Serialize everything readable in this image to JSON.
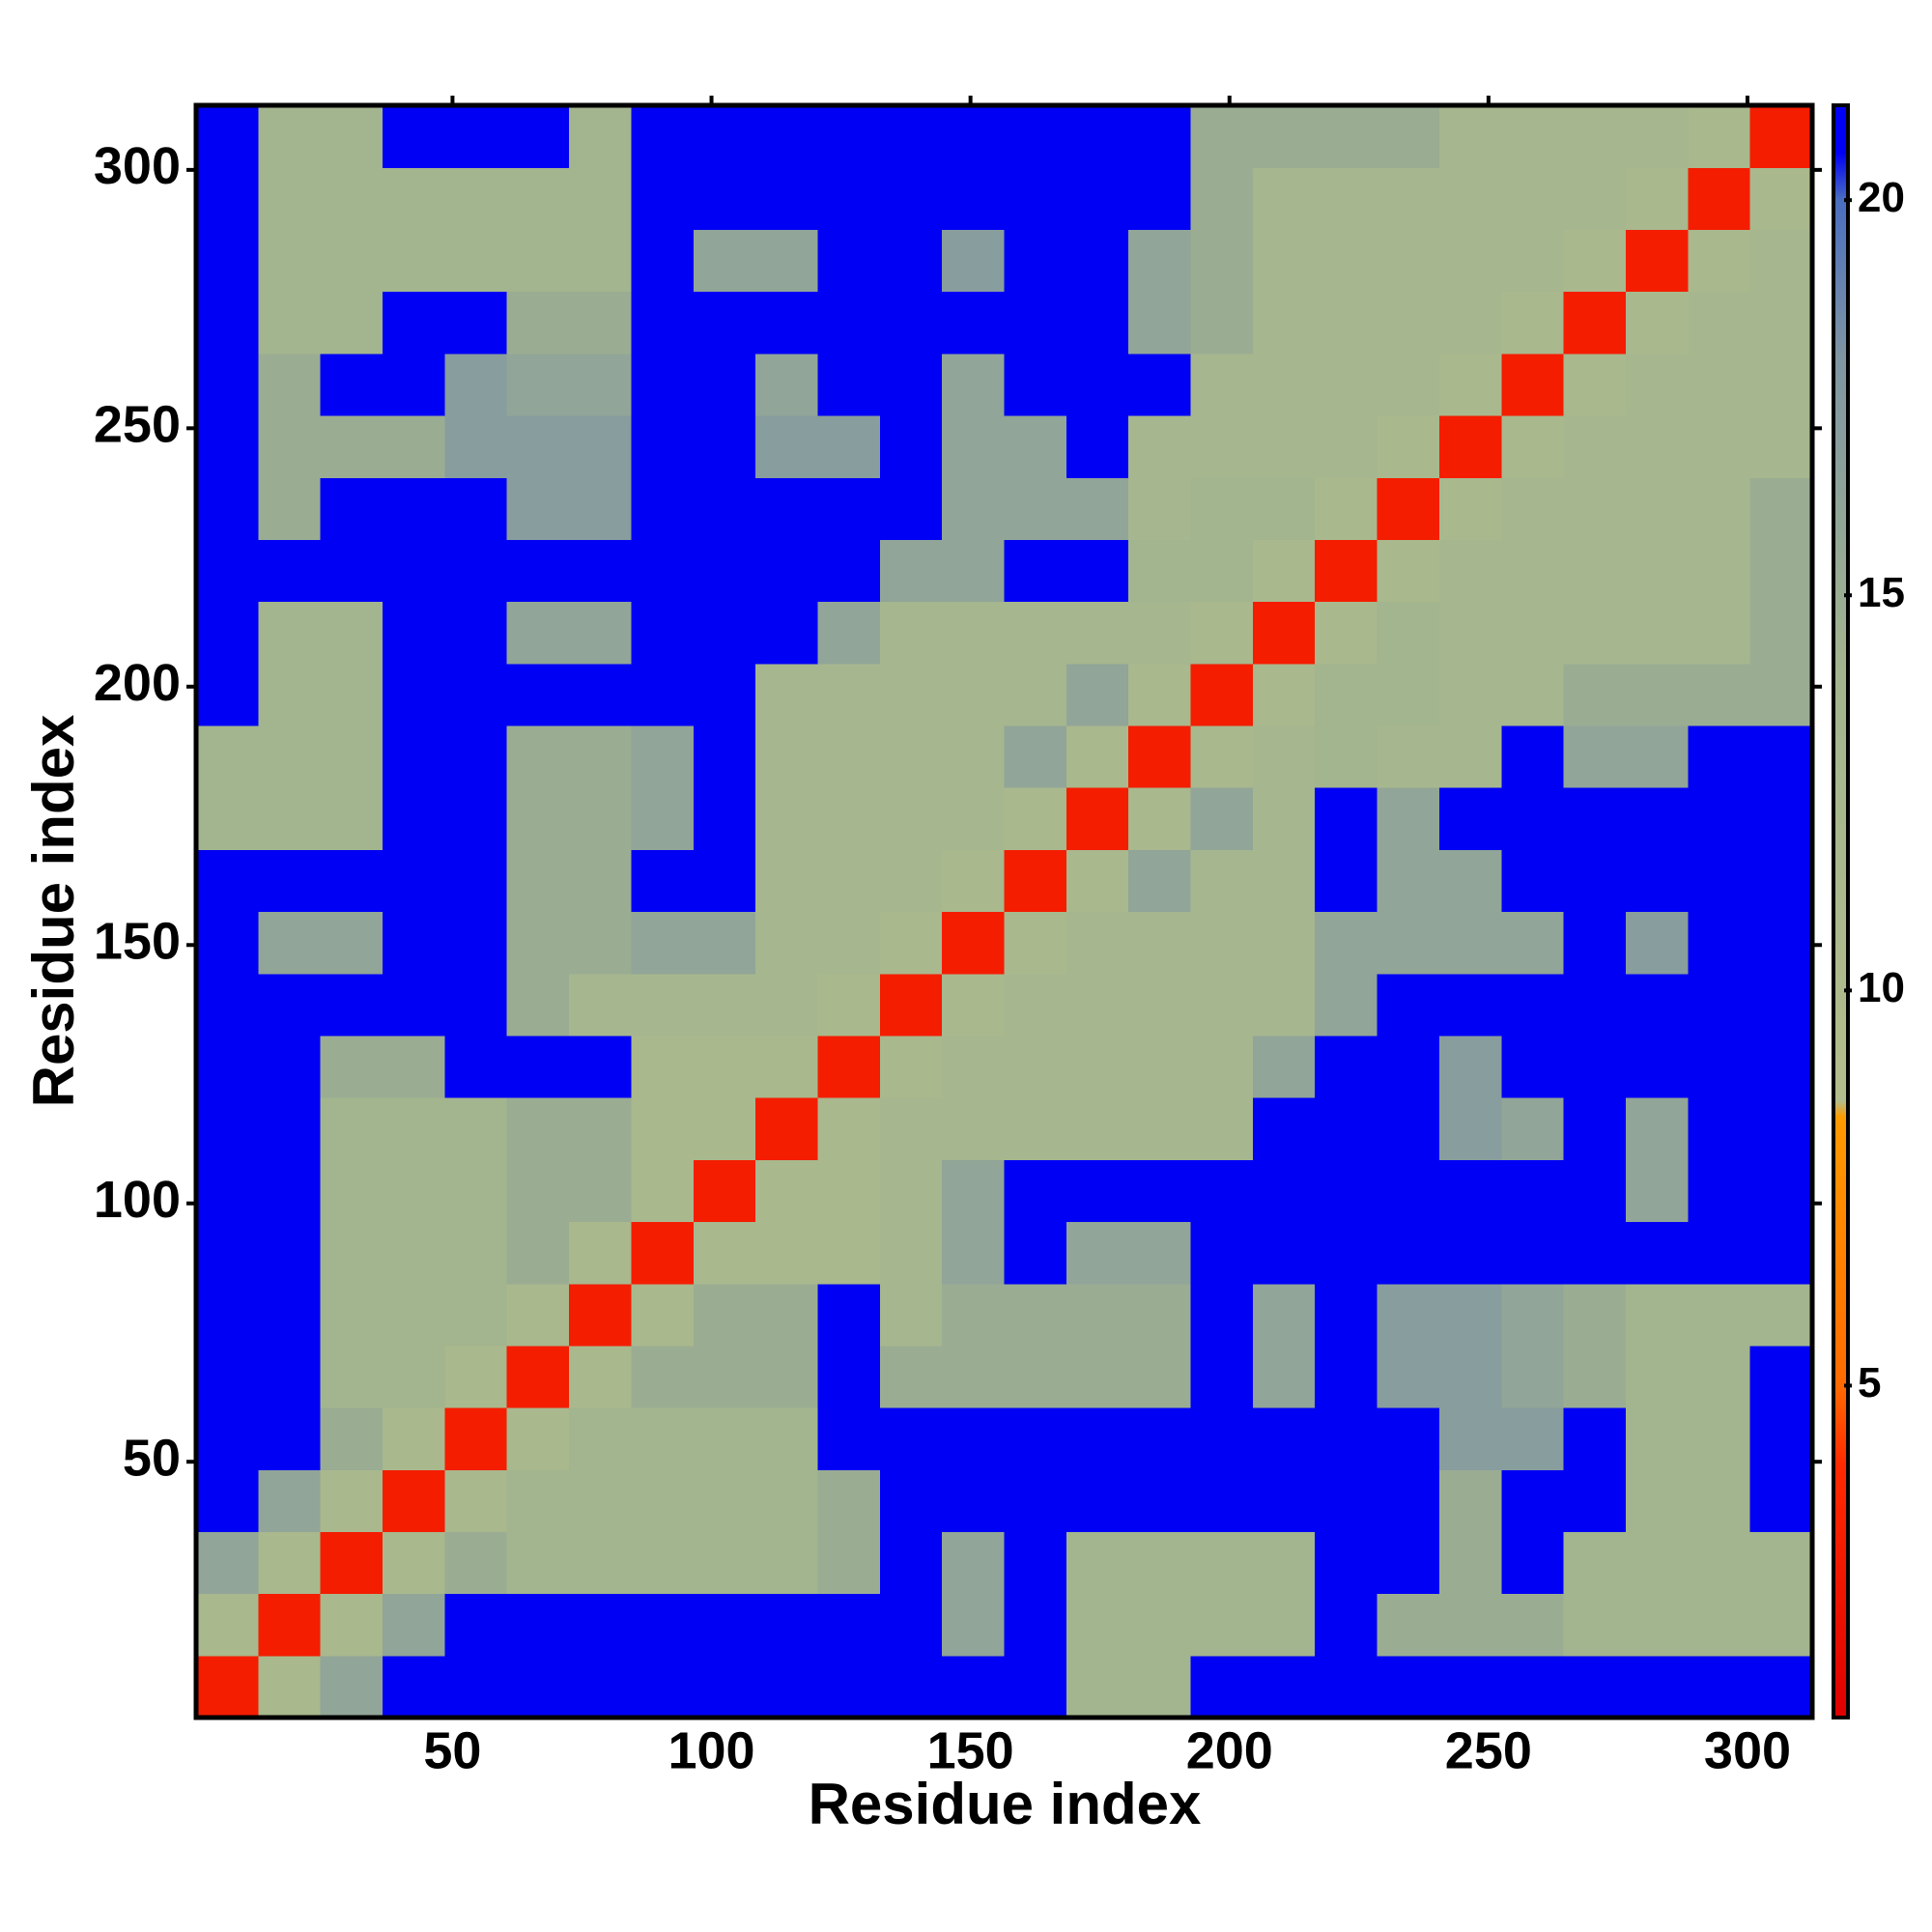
{
  "chart_data": {
    "type": "heatmap",
    "xlabel": "Residue index",
    "ylabel": "Residue index",
    "xlim": [
      0.5,
      312.5
    ],
    "ylim": [
      0.5,
      312.5
    ],
    "xticks": [
      50,
      100,
      150,
      200,
      250,
      300
    ],
    "yticks": [
      50,
      100,
      150,
      200,
      250,
      300
    ],
    "x_edges": [
      0.5,
      12.5,
      24.5,
      36.5,
      48.5,
      60.5,
      72.5,
      84.5,
      96.5,
      108.5,
      120.5,
      132.5,
      144.5,
      156.5,
      168.5,
      180.5,
      192.5,
      204.5,
      216.5,
      228.5,
      240.5,
      252.5,
      264.5,
      276.5,
      288.5,
      300.5,
      312.5
    ],
    "y_edges": [
      0.5,
      12.5,
      24.5,
      36.5,
      48.5,
      60.5,
      72.5,
      84.5,
      96.5,
      108.5,
      120.5,
      132.5,
      144.5,
      156.5,
      168.5,
      180.5,
      192.5,
      204.5,
      216.5,
      228.5,
      240.5,
      252.5,
      264.5,
      276.5,
      288.5,
      300.5,
      312.5
    ],
    "clim": [
      0.8,
      21.2
    ],
    "cticks": [
      5,
      10,
      15,
      20
    ],
    "colorscale": [
      {
        "value": 0.8,
        "color": "#dd0000"
      },
      {
        "value": 4,
        "color": "#ff2a00"
      },
      {
        "value": 5,
        "color": "#ff6a00"
      },
      {
        "value": 8.4,
        "color": "#ff9a00"
      },
      {
        "value": 8.6,
        "color": "#b3bd8c"
      },
      {
        "value": 14,
        "color": "#a3b58e"
      },
      {
        "value": 18,
        "color": "#7f95a2"
      },
      {
        "value": 20,
        "color": "#4a6ec0"
      },
      {
        "value": 20.6,
        "color": "#0000f5"
      },
      {
        "value": 21.2,
        "color": "#0000f5"
      }
    ],
    "values": [
      [
        3,
        12,
        16,
        21,
        21,
        21,
        21,
        21,
        21,
        21,
        21,
        21,
        21,
        21,
        14,
        14,
        21,
        21,
        21,
        21,
        21,
        21,
        21,
        21,
        21,
        21
      ],
      [
        12,
        3,
        12,
        16,
        21,
        21,
        21,
        21,
        21,
        21,
        21,
        21,
        16,
        21,
        14,
        14,
        14,
        14,
        21,
        15,
        15,
        15,
        14,
        14,
        14,
        14
      ],
      [
        16,
        12,
        3,
        12,
        15,
        14,
        14,
        14,
        14,
        14,
        15,
        21,
        16,
        21,
        14,
        14,
        14,
        14,
        21,
        21,
        15,
        21,
        14,
        14,
        14,
        14
      ],
      [
        21,
        16,
        12,
        3,
        12,
        14,
        14,
        14,
        14,
        14,
        15,
        21,
        21,
        21,
        21,
        21,
        21,
        21,
        21,
        21,
        15,
        21,
        21,
        14,
        14,
        21
      ],
      [
        21,
        21,
        15,
        12,
        3,
        12,
        14,
        14,
        14,
        14,
        21,
        21,
        21,
        21,
        21,
        21,
        21,
        21,
        21,
        21,
        17,
        17,
        21,
        14,
        14,
        21
      ],
      [
        21,
        21,
        14,
        14,
        12,
        3,
        12,
        15,
        15,
        15,
        21,
        15,
        15,
        15,
        15,
        15,
        21,
        16,
        21,
        17,
        17,
        16,
        15,
        14,
        14,
        21
      ],
      [
        21,
        21,
        14,
        14,
        14,
        12,
        3,
        12,
        15,
        15,
        21,
        13,
        15,
        15,
        15,
        15,
        21,
        16,
        21,
        17,
        17,
        16,
        15,
        14,
        14,
        14
      ],
      [
        21,
        21,
        14,
        14,
        14,
        15,
        12,
        3,
        12,
        12,
        12,
        13,
        16,
        21,
        16,
        16,
        21,
        21,
        21,
        21,
        21,
        21,
        21,
        21,
        21,
        21
      ],
      [
        21,
        21,
        14,
        14,
        14,
        15,
        15,
        12,
        3,
        12,
        12,
        13,
        16,
        21,
        21,
        21,
        21,
        21,
        21,
        21,
        21,
        21,
        21,
        16,
        21,
        21
      ],
      [
        21,
        21,
        14,
        14,
        14,
        15,
        15,
        12,
        12,
        3,
        12,
        13,
        13,
        13,
        13,
        13,
        13,
        21,
        21,
        21,
        17,
        16,
        21,
        16,
        21,
        21
      ],
      [
        21,
        21,
        15,
        15,
        21,
        21,
        21,
        12,
        12,
        12,
        3,
        12,
        13,
        13,
        13,
        13,
        13,
        16,
        21,
        21,
        17,
        21,
        21,
        21,
        21,
        21
      ],
      [
        21,
        21,
        21,
        21,
        21,
        15,
        13,
        13,
        13,
        13,
        12,
        3,
        12,
        13,
        13,
        13,
        13,
        13,
        16,
        21,
        21,
        21,
        21,
        21,
        21,
        21
      ],
      [
        21,
        16,
        16,
        21,
        21,
        15,
        15,
        16,
        16,
        13,
        13,
        12,
        3,
        12,
        13,
        13,
        13,
        13,
        16,
        16,
        16,
        16,
        21,
        17,
        21,
        21
      ],
      [
        21,
        21,
        21,
        21,
        21,
        15,
        15,
        21,
        21,
        13,
        13,
        13,
        12,
        3,
        12,
        16,
        13,
        13,
        21,
        16,
        16,
        21,
        21,
        21,
        21,
        21
      ],
      [
        14,
        14,
        14,
        21,
        21,
        15,
        15,
        16,
        21,
        13,
        13,
        13,
        13,
        12,
        3,
        12,
        16,
        13,
        21,
        16,
        21,
        21,
        21,
        21,
        21,
        21
      ],
      [
        14,
        14,
        14,
        21,
        21,
        15,
        15,
        16,
        21,
        13,
        13,
        13,
        13,
        16,
        12,
        3,
        12,
        13,
        14,
        13,
        13,
        21,
        16,
        16,
        21,
        21
      ],
      [
        21,
        14,
        14,
        21,
        21,
        21,
        21,
        21,
        21,
        13,
        13,
        13,
        13,
        13,
        16,
        12,
        3,
        12,
        14,
        14,
        13,
        13,
        15,
        15,
        15,
        15
      ],
      [
        21,
        14,
        14,
        21,
        21,
        16,
        16,
        21,
        21,
        21,
        16,
        13,
        13,
        13,
        13,
        13,
        12,
        3,
        12,
        14,
        13,
        13,
        13,
        13,
        13,
        15
      ],
      [
        21,
        21,
        21,
        21,
        21,
        21,
        21,
        21,
        21,
        21,
        21,
        16,
        16,
        21,
        21,
        14,
        14,
        12,
        3,
        12,
        13,
        13,
        13,
        13,
        13,
        15
      ],
      [
        21,
        15,
        21,
        21,
        21,
        17,
        17,
        21,
        21,
        21,
        21,
        21,
        16,
        16,
        16,
        13,
        14,
        14,
        12,
        3,
        12,
        13,
        13,
        13,
        13,
        15
      ],
      [
        21,
        15,
        15,
        15,
        17,
        17,
        17,
        21,
        21,
        17,
        17,
        21,
        16,
        16,
        21,
        13,
        13,
        13,
        13,
        12,
        3,
        12,
        13,
        13,
        13,
        13
      ],
      [
        21,
        15,
        21,
        21,
        17,
        16,
        16,
        21,
        21,
        16,
        21,
        21,
        16,
        21,
        21,
        21,
        13,
        13,
        13,
        13,
        12,
        3,
        12,
        13,
        13,
        13
      ],
      [
        21,
        14,
        14,
        21,
        21,
        15,
        15,
        21,
        21,
        21,
        21,
        21,
        21,
        21,
        21,
        16,
        15,
        13,
        13,
        13,
        13,
        12,
        3,
        12,
        13,
        13
      ],
      [
        21,
        14,
        14,
        14,
        14,
        14,
        14,
        21,
        16,
        16,
        21,
        21,
        17,
        21,
        21,
        16,
        15,
        13,
        13,
        13,
        13,
        13,
        12,
        3,
        12,
        13
      ],
      [
        21,
        14,
        14,
        14,
        14,
        14,
        14,
        21,
        21,
        21,
        21,
        21,
        21,
        21,
        21,
        21,
        15,
        13,
        13,
        13,
        13,
        13,
        13,
        12,
        3,
        12
      ],
      [
        21,
        14,
        14,
        21,
        21,
        21,
        14,
        21,
        21,
        21,
        21,
        21,
        21,
        21,
        21,
        21,
        15,
        15,
        15,
        15,
        13,
        13,
        13,
        13,
        12,
        3
      ]
    ]
  }
}
